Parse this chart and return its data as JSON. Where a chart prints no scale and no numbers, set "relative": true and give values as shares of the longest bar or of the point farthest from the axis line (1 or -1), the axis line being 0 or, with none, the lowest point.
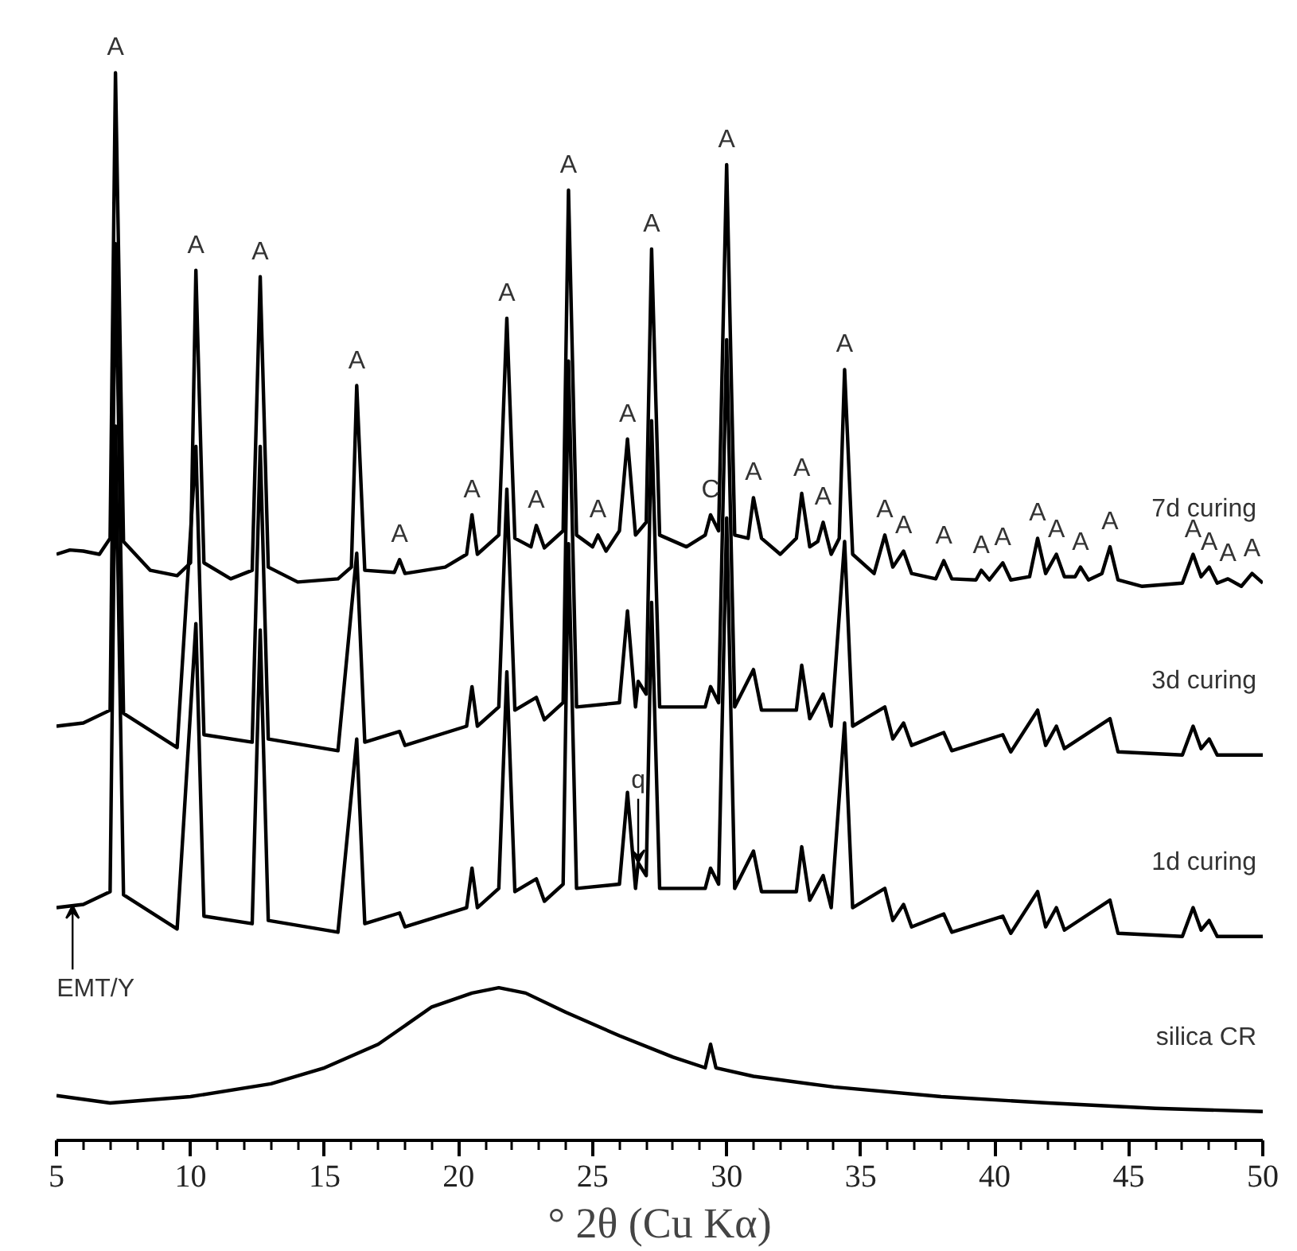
{
  "chart_data": {
    "type": "line",
    "relative": true,
    "xlabel": "° 2θ (Cu Kα)",
    "xlim": [
      5,
      50
    ],
    "xticks": [
      5,
      10,
      15,
      20,
      25,
      30,
      35,
      40,
      45,
      50
    ],
    "grid": false,
    "legend": false,
    "marker": "none",
    "line_style": "solid",
    "series": [
      {
        "name": "7d curing",
        "color": "#000000",
        "x": [
          5.0,
          5.5,
          6.0,
          6.6,
          7.0,
          7.2,
          7.5,
          8.5,
          9.5,
          10.0,
          10.2,
          10.5,
          11.5,
          12.3,
          12.6,
          12.9,
          14.0,
          15.5,
          16.0,
          16.2,
          16.5,
          17.6,
          17.8,
          18.0,
          19.5,
          20.3,
          20.5,
          20.7,
          21.5,
          21.8,
          22.1,
          22.7,
          22.9,
          23.2,
          23.9,
          24.1,
          24.4,
          25.0,
          25.2,
          25.5,
          26.0,
          26.3,
          26.6,
          27.0,
          27.2,
          27.5,
          28.5,
          29.2,
          29.4,
          29.7,
          30.0,
          30.3,
          30.8,
          31.0,
          31.3,
          32.0,
          32.6,
          32.8,
          33.1,
          33.4,
          33.6,
          33.9,
          34.2,
          34.4,
          34.7,
          35.5,
          35.9,
          36.2,
          36.6,
          36.9,
          37.8,
          38.1,
          38.4,
          39.3,
          39.5,
          39.8,
          40.3,
          40.6,
          41.3,
          41.6,
          41.9,
          42.3,
          42.6,
          43.0,
          43.2,
          43.5,
          44.0,
          44.3,
          44.6,
          45.5,
          47.0,
          47.4,
          47.7,
          48.0,
          48.3,
          48.7,
          49.2,
          49.6,
          50.0
        ],
        "values": [
          0.549,
          0.553,
          0.552,
          0.549,
          0.564,
          1,
          0.561,
          0.534,
          0.529,
          0.541,
          0.815,
          0.541,
          0.526,
          0.534,
          0.809,
          0.537,
          0.523,
          0.526,
          0.537,
          0.707,
          0.534,
          0.532,
          0.544,
          0.531,
          0.537,
          0.549,
          0.586,
          0.549,
          0.567,
          0.77,
          0.564,
          0.556,
          0.576,
          0.555,
          0.571,
          0.89,
          0.567,
          0.556,
          0.567,
          0.552,
          0.571,
          0.657,
          0.567,
          0.579,
          0.835,
          0.567,
          0.556,
          0.567,
          0.586,
          0.571,
          0.914,
          0.567,
          0.564,
          0.602,
          0.564,
          0.549,
          0.564,
          0.606,
          0.556,
          0.561,
          0.579,
          0.549,
          0.564,
          0.722,
          0.549,
          0.531,
          0.567,
          0.537,
          0.552,
          0.531,
          0.526,
          0.543,
          0.526,
          0.525,
          0.534,
          0.525,
          0.541,
          0.525,
          0.528,
          0.564,
          0.531,
          0.549,
          0.528,
          0.528,
          0.537,
          0.525,
          0.531,
          0.556,
          0.525,
          0.519,
          0.522,
          0.549,
          0.528,
          0.537,
          0.522,
          0.526,
          0.519,
          0.531,
          0.522
        ]
      },
      {
        "name": "3d curing",
        "color": "#000000",
        "x": [
          5.0,
          6.0,
          7.0,
          7.2,
          7.5,
          9.5,
          10.2,
          10.5,
          12.3,
          12.6,
          12.9,
          15.5,
          16.2,
          16.5,
          17.8,
          18.0,
          20.3,
          20.5,
          20.7,
          21.5,
          21.8,
          22.1,
          22.9,
          23.2,
          23.9,
          24.1,
          24.4,
          26.0,
          26.3,
          26.6,
          26.7,
          27.0,
          27.2,
          27.5,
          29.2,
          29.4,
          29.7,
          30.0,
          30.3,
          31.0,
          31.3,
          32.6,
          32.8,
          33.1,
          33.6,
          33.9,
          34.4,
          34.7,
          35.9,
          36.2,
          36.6,
          36.9,
          38.1,
          38.4,
          40.3,
          40.6,
          41.6,
          41.9,
          42.3,
          42.6,
          44.3,
          44.6,
          47.0,
          47.4,
          47.7,
          48.0,
          48.3,
          50.0
        ],
        "values": [
          0.388,
          0.391,
          0.403,
          0.84,
          0.4,
          0.368,
          0.65,
          0.38,
          0.373,
          0.65,
          0.376,
          0.365,
          0.55,
          0.373,
          0.383,
          0.37,
          0.388,
          0.425,
          0.388,
          0.406,
          0.61,
          0.403,
          0.415,
          0.394,
          0.41,
          0.73,
          0.406,
          0.41,
          0.496,
          0.406,
          0.43,
          0.418,
          0.674,
          0.406,
          0.406,
          0.425,
          0.41,
          0.75,
          0.406,
          0.441,
          0.403,
          0.403,
          0.445,
          0.395,
          0.418,
          0.388,
          0.561,
          0.388,
          0.406,
          0.376,
          0.391,
          0.37,
          0.382,
          0.365,
          0.38,
          0.364,
          0.403,
          0.37,
          0.388,
          0.367,
          0.395,
          0.364,
          0.361,
          0.388,
          0.367,
          0.376,
          0.361,
          0.361
        ]
      },
      {
        "name": "1d curing",
        "color": "#000000",
        "x": [
          5.0,
          6.0,
          7.0,
          7.2,
          7.5,
          9.5,
          10.2,
          10.5,
          12.3,
          12.6,
          12.9,
          15.5,
          16.2,
          16.5,
          17.8,
          18.0,
          20.3,
          20.5,
          20.7,
          21.5,
          21.8,
          22.1,
          22.9,
          23.2,
          23.9,
          24.1,
          24.4,
          26.0,
          26.3,
          26.6,
          26.7,
          27.0,
          27.2,
          27.5,
          29.2,
          29.4,
          29.7,
          30.0,
          30.3,
          31.0,
          31.3,
          32.6,
          32.8,
          33.1,
          33.6,
          33.9,
          34.4,
          34.7,
          35.9,
          36.2,
          36.6,
          36.9,
          38.1,
          38.4,
          40.3,
          40.6,
          41.6,
          41.9,
          42.3,
          42.6,
          44.3,
          44.6,
          47.0,
          47.4,
          47.7,
          48.0,
          48.3,
          50.0
        ],
        "values": [
          0.218,
          0.221,
          0.233,
          0.669,
          0.23,
          0.198,
          0.484,
          0.21,
          0.203,
          0.478,
          0.206,
          0.195,
          0.376,
          0.203,
          0.213,
          0.2,
          0.218,
          0.255,
          0.218,
          0.236,
          0.439,
          0.233,
          0.245,
          0.224,
          0.24,
          0.559,
          0.236,
          0.24,
          0.326,
          0.236,
          0.26,
          0.248,
          0.504,
          0.236,
          0.236,
          0.255,
          0.24,
          0.583,
          0.236,
          0.271,
          0.233,
          0.233,
          0.275,
          0.225,
          0.248,
          0.218,
          0.391,
          0.218,
          0.236,
          0.206,
          0.221,
          0.2,
          0.212,
          0.195,
          0.21,
          0.194,
          0.233,
          0.2,
          0.218,
          0.197,
          0.225,
          0.194,
          0.191,
          0.218,
          0.197,
          0.206,
          0.191,
          0.191
        ]
      },
      {
        "name": "silica CR",
        "color": "#000000",
        "x": [
          5,
          7,
          10,
          13,
          15,
          17,
          19,
          20.5,
          21.5,
          22.5,
          24,
          26,
          28,
          29.2,
          29.4,
          29.6,
          31,
          34,
          38,
          42,
          46,
          50
        ],
        "values": [
          0.042,
          0.035,
          0.041,
          0.053,
          0.068,
          0.09,
          0.125,
          0.138,
          0.143,
          0.138,
          0.12,
          0.098,
          0.078,
          0.068,
          0.09,
          0.068,
          0.06,
          0.05,
          0.041,
          0.035,
          0.03,
          0.027
        ]
      }
    ],
    "annotations": [
      {
        "text": "A",
        "x": 7.2,
        "y": 1
      },
      {
        "text": "A",
        "x": 10.2,
        "y": 0.815
      },
      {
        "text": "A",
        "x": 12.6,
        "y": 0.809
      },
      {
        "text": "A",
        "x": 16.2,
        "y": 0.707
      },
      {
        "text": "A",
        "x": 17.8,
        "y": 0.544
      },
      {
        "text": "A",
        "x": 20.5,
        "y": 0.586
      },
      {
        "text": "A",
        "x": 21.8,
        "y": 0.77
      },
      {
        "text": "A",
        "x": 22.9,
        "y": 0.576
      },
      {
        "text": "A",
        "x": 24.1,
        "y": 0.89
      },
      {
        "text": "A",
        "x": 25.2,
        "y": 0.567
      },
      {
        "text": "A",
        "x": 26.3,
        "y": 0.657
      },
      {
        "text": "A",
        "x": 27.2,
        "y": 0.835
      },
      {
        "text": "C",
        "x": 29.4,
        "y": 0.586
      },
      {
        "text": "A",
        "x": 30.0,
        "y": 0.914
      },
      {
        "text": "A",
        "x": 31.0,
        "y": 0.602
      },
      {
        "text": "A",
        "x": 32.8,
        "y": 0.606
      },
      {
        "text": "A",
        "x": 33.6,
        "y": 0.579
      },
      {
        "text": "A",
        "x": 34.4,
        "y": 0.722
      },
      {
        "text": "A",
        "x": 35.9,
        "y": 0.567
      },
      {
        "text": "A",
        "x": 36.6,
        "y": 0.552
      },
      {
        "text": "A",
        "x": 38.1,
        "y": 0.543
      },
      {
        "text": "A",
        "x": 39.5,
        "y": 0.534
      },
      {
        "text": "A",
        "x": 40.3,
        "y": 0.541
      },
      {
        "text": "A",
        "x": 41.6,
        "y": 0.564
      },
      {
        "text": "A",
        "x": 42.3,
        "y": 0.549
      },
      {
        "text": "A",
        "x": 43.2,
        "y": 0.537
      },
      {
        "text": "A",
        "x": 44.3,
        "y": 0.556
      },
      {
        "text": "A",
        "x": 47.4,
        "y": 0.549
      },
      {
        "text": "A",
        "x": 48.0,
        "y": 0.537
      },
      {
        "text": "A",
        "x": 48.7,
        "y": 0.526
      },
      {
        "text": "A",
        "x": 49.6,
        "y": 0.531
      },
      {
        "text": "q",
        "x": 26.7,
        "y": 0.26
      },
      {
        "text": "EMT/Y",
        "x": 5.6,
        "y": 0.22
      }
    ]
  }
}
